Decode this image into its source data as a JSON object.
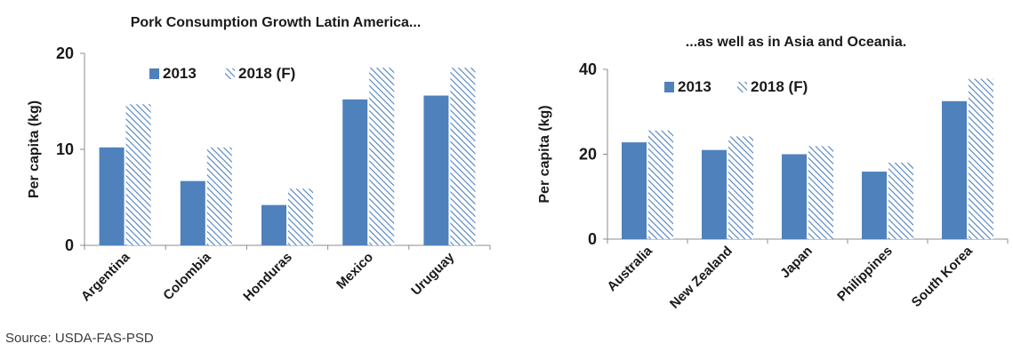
{
  "source_note": "Source: USDA-FAS-PSD",
  "chart_data": [
    {
      "type": "bar",
      "title": "Pork Consumption Growth Latin America...",
      "xlabel": "",
      "ylabel": "Per capita  (kg)",
      "ylim": [
        0,
        20
      ],
      "yticks": [
        "0",
        "10",
        "20"
      ],
      "categories": [
        "Argentina",
        "Colombia",
        "Honduras",
        "Mexico",
        "Uruguay"
      ],
      "series": [
        {
          "name": "2013",
          "values": [
            10.2,
            6.7,
            4.2,
            15.2,
            15.6
          ],
          "color": "#4f81bd",
          "pattern": "solid"
        },
        {
          "name": "2018 (F)",
          "values": [
            14.7,
            10.2,
            5.9,
            18.5,
            18.5
          ],
          "color": "#4f81bd",
          "pattern": "hatch"
        }
      ],
      "legend_position": "top-center",
      "grid": false
    },
    {
      "type": "bar",
      "title": "...as well as in Asia and Oceania.",
      "xlabel": "",
      "ylabel": "Per capita  (kg)",
      "ylim": [
        0,
        40
      ],
      "yticks": [
        "0",
        "20",
        "40"
      ],
      "categories": [
        "Australia",
        "New Zealand",
        "Japan",
        "Philippines",
        "South Korea"
      ],
      "series": [
        {
          "name": "2013",
          "values": [
            22.8,
            21.0,
            20.0,
            15.9,
            32.5
          ],
          "color": "#4f81bd",
          "pattern": "solid"
        },
        {
          "name": "2018 (F)",
          "values": [
            25.6,
            24.2,
            21.9,
            18.0,
            37.8
          ],
          "color": "#4f81bd",
          "pattern": "hatch"
        }
      ],
      "legend_position": "top-center",
      "grid": false
    }
  ]
}
